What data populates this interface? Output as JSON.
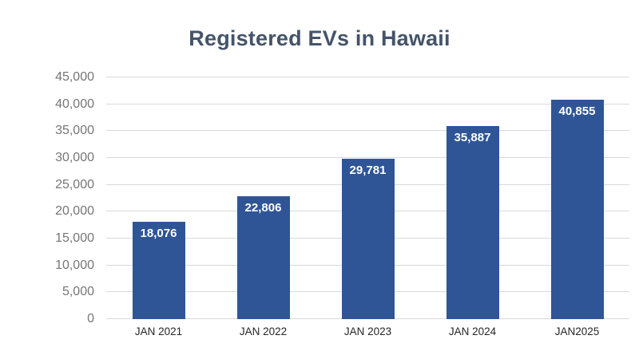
{
  "title": "Registered EVs in Hawaii",
  "colors": {
    "bar": "#2F5597",
    "title": "#44546A",
    "y_axis_label": "#767676",
    "x_axis_label": "#262626",
    "gridline": "#D9D9D9",
    "data_label": "#FFFFFF"
  },
  "chart_data": {
    "type": "bar",
    "title": "Registered EVs in Hawaii",
    "categories": [
      "JAN 2021",
      "JAN 2022",
      "JAN 2023",
      "JAN 2024",
      "JAN2025"
    ],
    "values": [
      18076,
      22806,
      29781,
      35887,
      40855
    ],
    "data_labels": [
      "18,076",
      "22,806",
      "29,781",
      "35,887",
      "40,855"
    ],
    "xlabel": "",
    "ylabel": "",
    "ylim": [
      0,
      45000
    ],
    "ytick_interval": 5000,
    "ytick_labels": [
      "0",
      "5,000",
      "10,000",
      "15,000",
      "20,000",
      "25,000",
      "30,000",
      "35,000",
      "40,000",
      "45,000"
    ],
    "grid": true,
    "legend": false
  }
}
